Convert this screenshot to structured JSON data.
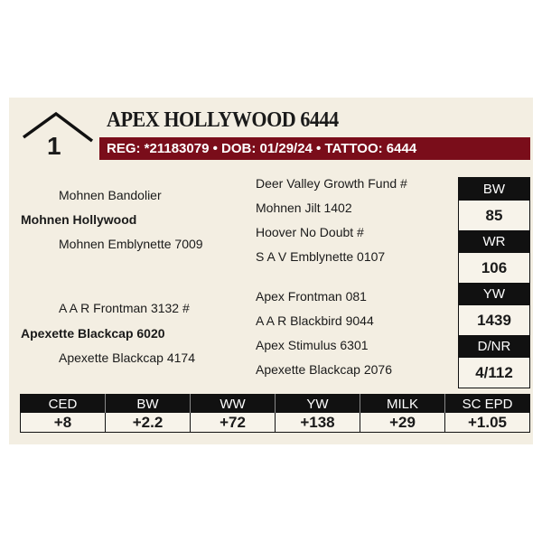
{
  "lot": {
    "number": "1",
    "title": "APEX HOLLYWOOD 6444",
    "reg_line": "REG: *21183079 • DOB: 01/29/24 • TATTOO: 6444"
  },
  "pedigree": {
    "sire": {
      "name": "Mohnen Hollywood",
      "sire": "Mohnen Bandolier",
      "dam": "Mohnen Emblynette 7009"
    },
    "dam": {
      "name": "Apexette Blackcap 6020",
      "sire": "A A R Frontman 3132 #",
      "dam": "Apexette Blackcap 4174"
    },
    "grand": [
      "Deer Valley Growth Fund #",
      "Mohnen Jilt 1402",
      "Hoover No Doubt #",
      "S A V Emblynette 0107",
      "Apex Frontman 081",
      "A A R Blackbird 9044",
      "Apex Stimulus 6301",
      "Apexette Blackcap 2076"
    ]
  },
  "stats": [
    {
      "label": "BW",
      "value": "85"
    },
    {
      "label": "WR",
      "value": "106"
    },
    {
      "label": "YW",
      "value": "1439"
    },
    {
      "label": "D/NR",
      "value": "4/112"
    }
  ],
  "epds": [
    {
      "label": "CED",
      "value": "+8"
    },
    {
      "label": "BW",
      "value": "+2.2"
    },
    {
      "label": "WW",
      "value": "+72"
    },
    {
      "label": "YW",
      "value": "+138"
    },
    {
      "label": "MILK",
      "value": "+29"
    },
    {
      "label": "SC EPD",
      "value": "+1.05"
    }
  ],
  "colors": {
    "reg_bar": "#7a0d1a",
    "background": "#f3eee2"
  }
}
